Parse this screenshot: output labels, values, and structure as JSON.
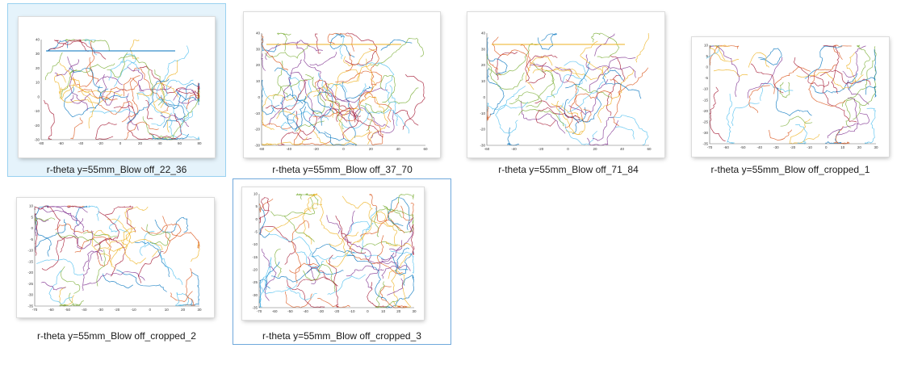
{
  "files": [
    {
      "name": "r-theta y=55mm_Blow off_22_36",
      "state": "selected",
      "plot": {
        "xticks": [
          "-80",
          "-60",
          "-40",
          "-20",
          "0",
          "20",
          "40",
          "60",
          "80"
        ],
        "yticks": [
          "40",
          "30",
          "20",
          "10",
          "0",
          "-10",
          "-20",
          "-30"
        ]
      }
    },
    {
      "name": "r-theta y=55mm_Blow off_37_70",
      "state": "normal",
      "plot": {
        "xticks": [
          "-60",
          "-40",
          "-20",
          "0",
          "20",
          "40",
          "60"
        ],
        "yticks": [
          "40",
          "30",
          "20",
          "10",
          "0",
          "-10",
          "-20",
          "-30"
        ]
      }
    },
    {
      "name": "r-theta y=55mm_Blow off_71_84",
      "state": "normal",
      "plot": {
        "xticks": [
          "-60",
          "-40",
          "-20",
          "0",
          "20",
          "40",
          "60"
        ],
        "yticks": [
          "40",
          "30",
          "20",
          "10",
          "0",
          "-10",
          "-20",
          "-30"
        ]
      }
    },
    {
      "name": "r-theta y=55mm_Blow off_cropped_1",
      "state": "normal",
      "plot": {
        "xticks": [
          "-70",
          "-60",
          "-50",
          "-40",
          "-30",
          "-20",
          "-10",
          "0",
          "10",
          "20",
          "30"
        ],
        "yticks": [
          "10",
          "5",
          "0",
          "-5",
          "-10",
          "-15",
          "-20",
          "-25",
          "-30",
          "-35"
        ]
      }
    },
    {
      "name": "r-theta y=55mm_Blow off_cropped_2",
      "state": "normal",
      "plot": {
        "xticks": [
          "-70",
          "-60",
          "-50",
          "-40",
          "-30",
          "-20",
          "-10",
          "0",
          "10",
          "20",
          "30"
        ],
        "yticks": [
          "10",
          "5",
          "0",
          "-5",
          "-10",
          "-15",
          "-20",
          "-25",
          "-30",
          "-35"
        ]
      }
    },
    {
      "name": "r-theta y=55mm_Blow off_cropped_3",
      "state": "focused",
      "plot": {
        "xticks": [
          "-70",
          "-60",
          "-50",
          "-40",
          "-30",
          "-20",
          "-10",
          "0",
          "10",
          "20",
          "30"
        ],
        "yticks": [
          "10",
          "5",
          "0",
          "-5",
          "-10",
          "-15",
          "-20",
          "-25",
          "-30",
          "-35"
        ]
      }
    }
  ],
  "series_colors": [
    "#0072bd",
    "#d95319",
    "#edb120",
    "#7e2f8e",
    "#77ac30",
    "#4dbeee",
    "#a2142f"
  ]
}
